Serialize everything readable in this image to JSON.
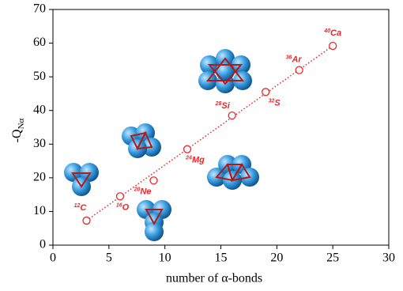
{
  "chart_data": {
    "type": "scatter",
    "xlabel": "number of α-bonds",
    "ylabel": {
      "main": "-Q",
      "sub": "Nα"
    },
    "x": [
      3,
      6,
      9,
      12,
      16,
      19,
      22,
      25
    ],
    "values": [
      7.3,
      14.5,
      19.2,
      28.5,
      38.5,
      45.5,
      52,
      59.2
    ],
    "point_labels": [
      {
        "mass": "12",
        "element": "C"
      },
      {
        "mass": "16",
        "element": "O"
      },
      {
        "mass": "20",
        "element": "Ne"
      },
      {
        "mass": "24",
        "element": "Mg"
      },
      {
        "mass": "28",
        "element": "Si"
      },
      {
        "mass": "32",
        "element": "S"
      },
      {
        "mass": "36",
        "element": "Ar"
      },
      {
        "mass": "40",
        "element": "Ca"
      }
    ],
    "color": "#e8262a",
    "xlim": [
      0,
      30
    ],
    "xticks": [
      0,
      5,
      10,
      15,
      20,
      25,
      30
    ],
    "ylim": [
      0,
      70
    ],
    "yticks": [
      0,
      10,
      20,
      30,
      40,
      50,
      60,
      70
    ]
  }
}
